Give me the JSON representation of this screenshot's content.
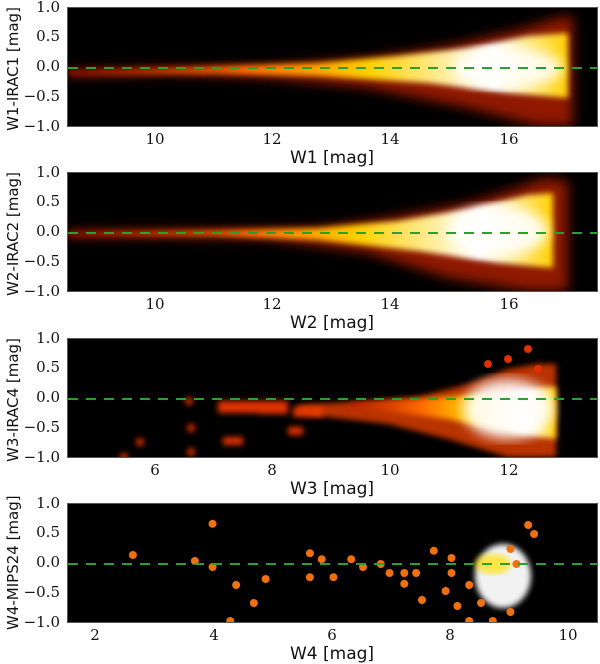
{
  "chart_data": [
    {
      "type": "heatmap",
      "title": "",
      "xlabel": "W1 [mag]",
      "ylabel": "W1-IRAC1 [mag]",
      "xlim": [
        8.5,
        17.5
      ],
      "ylim": [
        -1.0,
        1.0
      ],
      "xticks": [
        "10",
        "12",
        "14",
        "16"
      ],
      "yticks": [
        "1.0",
        "0.5",
        "0.0",
        "−0.5",
        "−1.0"
      ],
      "reference_line": {
        "y": 0.0,
        "style": "dashed",
        "color": "#2ca02c"
      },
      "description": "2D density of sources; narrow locus near 0 at bright end widening toward faint end (~16-17 mag) with densest region near 16.5 mag",
      "density_profile": {
        "x": [
          9,
          10,
          11,
          12,
          13,
          14,
          15,
          16,
          17
        ],
        "center_y": [
          -0.1,
          -0.05,
          -0.05,
          0.0,
          0.0,
          0.0,
          0.0,
          0.0,
          0.0
        ],
        "spread": [
          0.1,
          0.1,
          0.1,
          0.15,
          0.25,
          0.35,
          0.5,
          0.7,
          0.8
        ]
      }
    },
    {
      "type": "heatmap",
      "xlabel": "W2 [mag]",
      "ylabel": "W2-IRAC2 [mag]",
      "xlim": [
        8.5,
        17.5
      ],
      "ylim": [
        -1.0,
        1.0
      ],
      "xticks": [
        "10",
        "12",
        "14",
        "16"
      ],
      "yticks": [
        "1.0",
        "0.5",
        "0.0",
        "−0.5",
        "−1.0"
      ],
      "reference_line": {
        "y": 0.0,
        "style": "dashed",
        "color": "#2ca02c"
      },
      "density_profile": {
        "x": [
          9,
          10,
          11,
          12,
          13,
          14,
          15,
          16,
          17
        ],
        "center_y": [
          -0.05,
          -0.05,
          -0.05,
          -0.05,
          0.0,
          0.0,
          0.0,
          0.05,
          0.05
        ],
        "spread": [
          0.05,
          0.05,
          0.08,
          0.15,
          0.25,
          0.4,
          0.55,
          0.8,
          0.9
        ]
      }
    },
    {
      "type": "heatmap",
      "xlabel": "W3 [mag]",
      "ylabel": "W3-IRAC4 [mag]",
      "xlim": [
        4.5,
        13.5
      ],
      "ylim": [
        -1.0,
        1.0
      ],
      "xticks": [
        "6",
        "8",
        "10",
        "12"
      ],
      "yticks": [
        "1.0",
        "0.5",
        "0.0",
        "−0.5",
        "−1.0"
      ],
      "reference_line": {
        "y": 0.0,
        "style": "dashed",
        "color": "#2ca02c"
      },
      "density_profile": {
        "x": [
          7,
          8,
          9,
          10,
          11,
          12,
          13
        ],
        "center_y": [
          -0.1,
          -0.15,
          -0.15,
          -0.1,
          -0.1,
          -0.1,
          -0.1
        ],
        "spread": [
          0.1,
          0.15,
          0.15,
          0.2,
          0.35,
          0.6,
          0.9
        ]
      }
    },
    {
      "type": "scatter",
      "xlabel": "W4 [mag]",
      "ylabel": "W4-MIPS24  [mag]",
      "xlim": [
        1.5,
        10.5
      ],
      "ylim": [
        -1.0,
        1.0
      ],
      "xticks": [
        "2",
        "4",
        "6",
        "8",
        "10"
      ],
      "yticks": [
        "1.0",
        "0.5",
        "0.0",
        "−0.5",
        "−1.0"
      ],
      "reference_line": {
        "y": 0.0,
        "style": "dashed",
        "color": "#2ca02c"
      },
      "points": [
        [
          2.6,
          0.15
        ],
        [
          3.65,
          0.05
        ],
        [
          3.95,
          0.67
        ],
        [
          3.95,
          -0.05
        ],
        [
          4.35,
          -0.35
        ],
        [
          4.25,
          -0.95
        ],
        [
          4.65,
          -0.65
        ],
        [
          4.85,
          -0.25
        ],
        [
          5.6,
          0.18
        ],
        [
          5.8,
          0.08
        ],
        [
          5.6,
          -0.22
        ],
        [
          6.0,
          -0.22
        ],
        [
          6.3,
          0.08
        ],
        [
          6.5,
          -0.05
        ],
        [
          6.8,
          0.0
        ],
        [
          6.95,
          -0.15
        ],
        [
          7.2,
          -0.15
        ],
        [
          7.2,
          -0.33
        ],
        [
          7.4,
          -0.15
        ],
        [
          7.5,
          -0.6
        ],
        [
          7.9,
          -0.45
        ],
        [
          7.7,
          0.22
        ],
        [
          8.0,
          0.1
        ],
        [
          8.0,
          -0.15
        ],
        [
          8.1,
          -0.7
        ],
        [
          8.3,
          -0.35
        ],
        [
          8.5,
          -0.65
        ],
        [
          8.3,
          -0.95
        ],
        [
          8.7,
          -0.95
        ],
        [
          9.0,
          -0.8
        ],
        [
          9.0,
          0.25
        ],
        [
          9.1,
          0.0
        ],
        [
          9.3,
          0.65
        ],
        [
          9.4,
          0.5
        ]
      ],
      "dense_cluster": {
        "x_range": [
          8.4,
          9.6
        ],
        "y_range": [
          -0.8,
          0.3
        ]
      }
    }
  ]
}
